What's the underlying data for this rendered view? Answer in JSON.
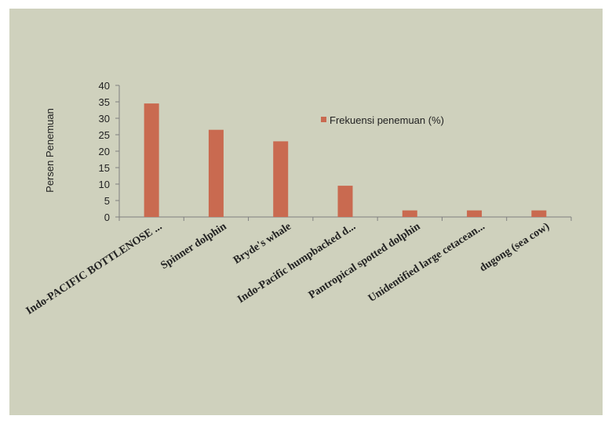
{
  "chart_data": {
    "type": "bar",
    "title": "",
    "xlabel": "",
    "ylabel": "Persen Penemuan",
    "ylim": [
      0,
      40
    ],
    "yticks": [
      0,
      5,
      10,
      15,
      20,
      25,
      30,
      35,
      40
    ],
    "categories": [
      "Indo-PACIFIC BOTTLENOSE ...",
      "Spinner dolphin",
      "Bryde's whale",
      "Indo-Pacific humpbacked d...",
      "Pantropical spotted dolphin",
      "Unidentified large cetacean...",
      "dugong (sea cow)"
    ],
    "series": [
      {
        "name": "Frekuensi penemuan (%)",
        "values": [
          34.5,
          26.5,
          23,
          9.5,
          2,
          2,
          2
        ],
        "color": "#c96a50"
      }
    ],
    "grid": false,
    "legend_position": "top-right",
    "background": "#cfd1bd"
  }
}
